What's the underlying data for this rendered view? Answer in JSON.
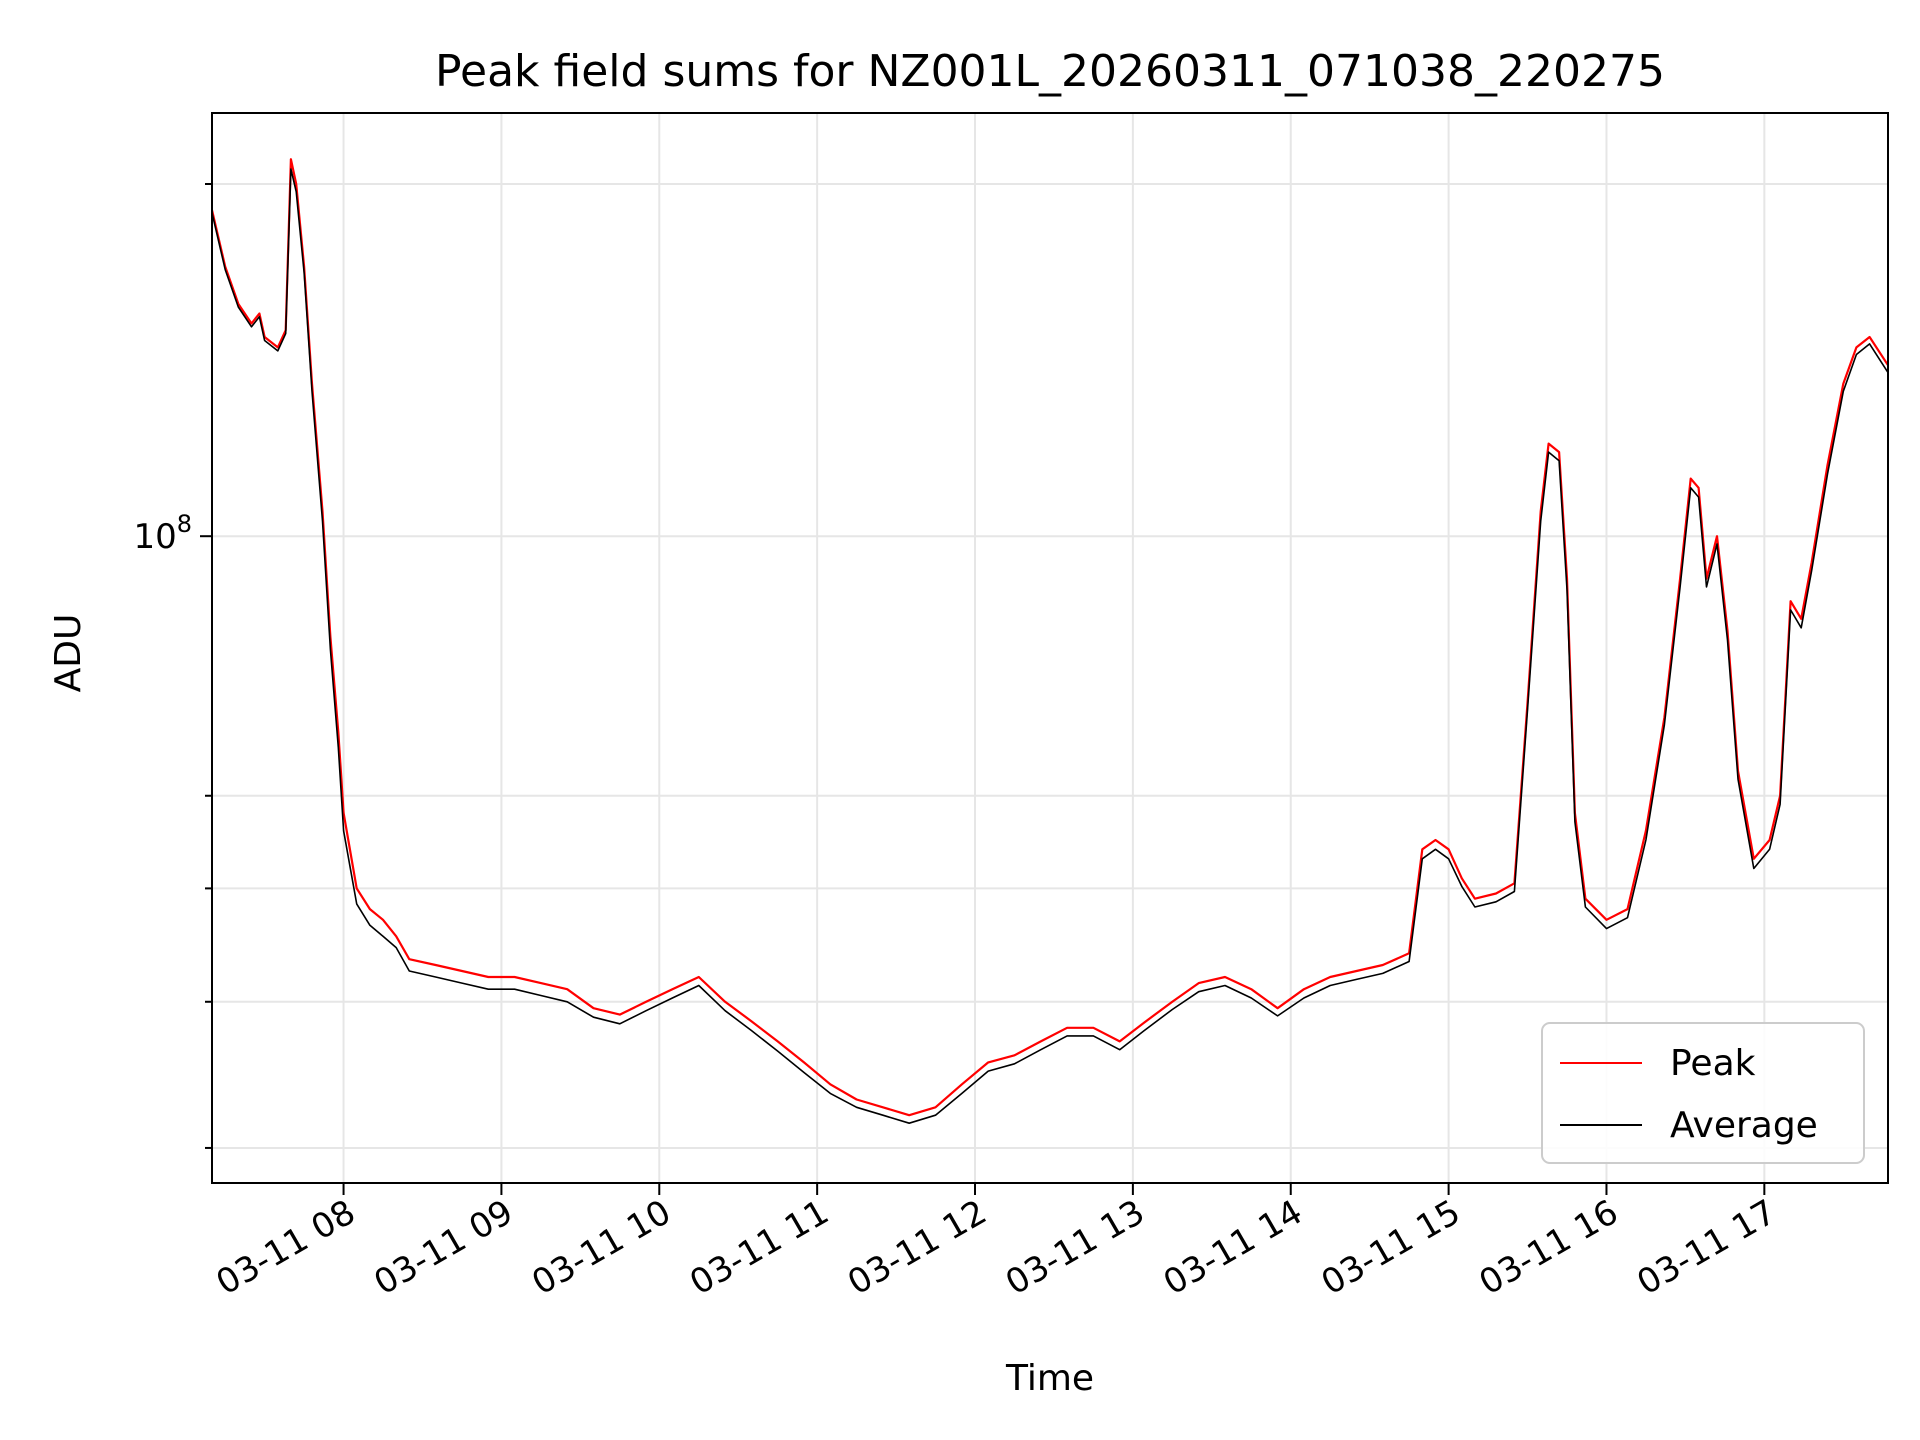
{
  "chart_data": {
    "type": "line",
    "title": "Peak field sums for NZ001L_20260311_071038_220275",
    "xlabel": "Time",
    "ylabel": "ADU",
    "yscale": "log",
    "ylim": [
      28000000,
      230000000
    ],
    "xlim": [
      "2026-03-11 07:10",
      "2026-03-11 17:47"
    ],
    "grid": true,
    "legend_position": "lower-right",
    "x_ticks": [
      {
        "value": "2026-03-11 08:00",
        "label": "03-11 08"
      },
      {
        "value": "2026-03-11 09:00",
        "label": "03-11 09"
      },
      {
        "value": "2026-03-11 10:00",
        "label": "03-11 10"
      },
      {
        "value": "2026-03-11 11:00",
        "label": "03-11 11"
      },
      {
        "value": "2026-03-11 12:00",
        "label": "03-11 12"
      },
      {
        "value": "2026-03-11 13:00",
        "label": "03-11 13"
      },
      {
        "value": "2026-03-11 14:00",
        "label": "03-11 14"
      },
      {
        "value": "2026-03-11 15:00",
        "label": "03-11 15"
      },
      {
        "value": "2026-03-11 16:00",
        "label": "03-11 16"
      },
      {
        "value": "2026-03-11 17:00",
        "label": "03-11 17"
      }
    ],
    "y_major_ticks": [
      {
        "value": 100000000,
        "label": "10",
        "exponent": "8"
      }
    ],
    "y_minor_ticks": [
      30000000,
      40000000,
      50000000,
      60000000,
      200000000
    ],
    "series": [
      {
        "name": "Peak",
        "color": "#ff0000",
        "points": [
          [
            "2026-03-11 07:10",
            190000000
          ],
          [
            "2026-03-11 07:15",
            170000000
          ],
          [
            "2026-03-11 07:20",
            158000000
          ],
          [
            "2026-03-11 07:25",
            152000000
          ],
          [
            "2026-03-11 07:28",
            155000000
          ],
          [
            "2026-03-11 07:30",
            148000000
          ],
          [
            "2026-03-11 07:35",
            145000000
          ],
          [
            "2026-03-11 07:38",
            150000000
          ],
          [
            "2026-03-11 07:40",
            210000000
          ],
          [
            "2026-03-11 07:42",
            200000000
          ],
          [
            "2026-03-11 07:45",
            170000000
          ],
          [
            "2026-03-11 07:48",
            135000000
          ],
          [
            "2026-03-11 07:52",
            105000000
          ],
          [
            "2026-03-11 07:55",
            82000000
          ],
          [
            "2026-03-11 07:58",
            68000000
          ],
          [
            "2026-03-11 08:00",
            58000000
          ],
          [
            "2026-03-11 08:05",
            50000000
          ],
          [
            "2026-03-11 08:10",
            48000000
          ],
          [
            "2026-03-11 08:15",
            47000000
          ],
          [
            "2026-03-11 08:20",
            45500000
          ],
          [
            "2026-03-11 08:25",
            43500000
          ],
          [
            "2026-03-11 08:35",
            43000000
          ],
          [
            "2026-03-11 08:45",
            42500000
          ],
          [
            "2026-03-11 08:55",
            42000000
          ],
          [
            "2026-03-11 09:05",
            42000000
          ],
          [
            "2026-03-11 09:15",
            41500000
          ],
          [
            "2026-03-11 09:25",
            41000000
          ],
          [
            "2026-03-11 09:35",
            39500000
          ],
          [
            "2026-03-11 09:45",
            39000000
          ],
          [
            "2026-03-11 09:55",
            40000000
          ],
          [
            "2026-03-11 10:05",
            41000000
          ],
          [
            "2026-03-11 10:15",
            42000000
          ],
          [
            "2026-03-11 10:25",
            40000000
          ],
          [
            "2026-03-11 10:35",
            38500000
          ],
          [
            "2026-03-11 10:45",
            37000000
          ],
          [
            "2026-03-11 10:55",
            35500000
          ],
          [
            "2026-03-11 11:05",
            34000000
          ],
          [
            "2026-03-11 11:15",
            33000000
          ],
          [
            "2026-03-11 11:25",
            32500000
          ],
          [
            "2026-03-11 11:35",
            32000000
          ],
          [
            "2026-03-11 11:45",
            32500000
          ],
          [
            "2026-03-11 11:55",
            34000000
          ],
          [
            "2026-03-11 12:05",
            35500000
          ],
          [
            "2026-03-11 12:15",
            36000000
          ],
          [
            "2026-03-11 12:25",
            37000000
          ],
          [
            "2026-03-11 12:35",
            38000000
          ],
          [
            "2026-03-11 12:45",
            38000000
          ],
          [
            "2026-03-11 12:55",
            37000000
          ],
          [
            "2026-03-11 13:05",
            38500000
          ],
          [
            "2026-03-11 13:15",
            40000000
          ],
          [
            "2026-03-11 13:25",
            41500000
          ],
          [
            "2026-03-11 13:35",
            42000000
          ],
          [
            "2026-03-11 13:45",
            41000000
          ],
          [
            "2026-03-11 13:55",
            39500000
          ],
          [
            "2026-03-11 14:05",
            41000000
          ],
          [
            "2026-03-11 14:15",
            42000000
          ],
          [
            "2026-03-11 14:25",
            42500000
          ],
          [
            "2026-03-11 14:35",
            43000000
          ],
          [
            "2026-03-11 14:45",
            44000000
          ],
          [
            "2026-03-11 14:50",
            54000000
          ],
          [
            "2026-03-11 14:55",
            55000000
          ],
          [
            "2026-03-11 15:00",
            54000000
          ],
          [
            "2026-03-11 15:05",
            51000000
          ],
          [
            "2026-03-11 15:10",
            49000000
          ],
          [
            "2026-03-11 15:18",
            49500000
          ],
          [
            "2026-03-11 15:25",
            50500000
          ],
          [
            "2026-03-11 15:30",
            72000000
          ],
          [
            "2026-03-11 15:35",
            105000000
          ],
          [
            "2026-03-11 15:38",
            120000000
          ],
          [
            "2026-03-11 15:42",
            118000000
          ],
          [
            "2026-03-11 15:45",
            92000000
          ],
          [
            "2026-03-11 15:48",
            58000000
          ],
          [
            "2026-03-11 15:52",
            49000000
          ],
          [
            "2026-03-11 16:00",
            47000000
          ],
          [
            "2026-03-11 16:08",
            48000000
          ],
          [
            "2026-03-11 16:15",
            56000000
          ],
          [
            "2026-03-11 16:22",
            70000000
          ],
          [
            "2026-03-11 16:28",
            92000000
          ],
          [
            "2026-03-11 16:32",
            112000000
          ],
          [
            "2026-03-11 16:35",
            110000000
          ],
          [
            "2026-03-11 16:38",
            92000000
          ],
          [
            "2026-03-11 16:42",
            100000000
          ],
          [
            "2026-03-11 16:46",
            83000000
          ],
          [
            "2026-03-11 16:50",
            63000000
          ],
          [
            "2026-03-11 16:56",
            53000000
          ],
          [
            "2026-03-11 17:02",
            55000000
          ],
          [
            "2026-03-11 17:06",
            60000000
          ],
          [
            "2026-03-11 17:10",
            88000000
          ],
          [
            "2026-03-11 17:14",
            85000000
          ],
          [
            "2026-03-11 17:18",
            95000000
          ],
          [
            "2026-03-11 17:24",
            115000000
          ],
          [
            "2026-03-11 17:30",
            135000000
          ],
          [
            "2026-03-11 17:35",
            145000000
          ],
          [
            "2026-03-11 17:40",
            148000000
          ],
          [
            "2026-03-11 17:47",
            140000000
          ]
        ]
      },
      {
        "name": "Average",
        "color": "#000000",
        "points": [
          [
            "2026-03-11 07:10",
            189000000
          ],
          [
            "2026-03-11 07:15",
            169000000
          ],
          [
            "2026-03-11 07:20",
            157000000
          ],
          [
            "2026-03-11 07:25",
            151000000
          ],
          [
            "2026-03-11 07:28",
            154000000
          ],
          [
            "2026-03-11 07:30",
            147000000
          ],
          [
            "2026-03-11 07:35",
            144000000
          ],
          [
            "2026-03-11 07:38",
            149000000
          ],
          [
            "2026-03-11 07:40",
            206000000
          ],
          [
            "2026-03-11 07:42",
            197000000
          ],
          [
            "2026-03-11 07:45",
            168000000
          ],
          [
            "2026-03-11 07:48",
            133000000
          ],
          [
            "2026-03-11 07:52",
            103000000
          ],
          [
            "2026-03-11 07:55",
            80000000
          ],
          [
            "2026-03-11 07:58",
            66000000
          ],
          [
            "2026-03-11 08:00",
            56000000
          ],
          [
            "2026-03-11 08:05",
            48500000
          ],
          [
            "2026-03-11 08:10",
            46500000
          ],
          [
            "2026-03-11 08:15",
            45500000
          ],
          [
            "2026-03-11 08:20",
            44500000
          ],
          [
            "2026-03-11 08:25",
            42500000
          ],
          [
            "2026-03-11 08:35",
            42000000
          ],
          [
            "2026-03-11 08:45",
            41500000
          ],
          [
            "2026-03-11 08:55",
            41000000
          ],
          [
            "2026-03-11 09:05",
            41000000
          ],
          [
            "2026-03-11 09:15",
            40500000
          ],
          [
            "2026-03-11 09:25",
            40000000
          ],
          [
            "2026-03-11 09:35",
            38800000
          ],
          [
            "2026-03-11 09:45",
            38300000
          ],
          [
            "2026-03-11 09:55",
            39300000
          ],
          [
            "2026-03-11 10:05",
            40300000
          ],
          [
            "2026-03-11 10:15",
            41300000
          ],
          [
            "2026-03-11 10:25",
            39300000
          ],
          [
            "2026-03-11 10:35",
            37800000
          ],
          [
            "2026-03-11 10:45",
            36300000
          ],
          [
            "2026-03-11 10:55",
            34800000
          ],
          [
            "2026-03-11 11:05",
            33400000
          ],
          [
            "2026-03-11 11:15",
            32500000
          ],
          [
            "2026-03-11 11:25",
            32000000
          ],
          [
            "2026-03-11 11:35",
            31500000
          ],
          [
            "2026-03-11 11:45",
            32000000
          ],
          [
            "2026-03-11 11:55",
            33400000
          ],
          [
            "2026-03-11 12:05",
            34900000
          ],
          [
            "2026-03-11 12:15",
            35400000
          ],
          [
            "2026-03-11 12:25",
            36400000
          ],
          [
            "2026-03-11 12:35",
            37400000
          ],
          [
            "2026-03-11 12:45",
            37400000
          ],
          [
            "2026-03-11 12:55",
            36400000
          ],
          [
            "2026-03-11 13:05",
            37900000
          ],
          [
            "2026-03-11 13:15",
            39400000
          ],
          [
            "2026-03-11 13:25",
            40800000
          ],
          [
            "2026-03-11 13:35",
            41300000
          ],
          [
            "2026-03-11 13:45",
            40300000
          ],
          [
            "2026-03-11 13:55",
            38900000
          ],
          [
            "2026-03-11 14:05",
            40300000
          ],
          [
            "2026-03-11 14:15",
            41300000
          ],
          [
            "2026-03-11 14:25",
            41800000
          ],
          [
            "2026-03-11 14:35",
            42300000
          ],
          [
            "2026-03-11 14:45",
            43300000
          ],
          [
            "2026-03-11 14:50",
            53000000
          ],
          [
            "2026-03-11 14:55",
            54000000
          ],
          [
            "2026-03-11 15:00",
            53000000
          ],
          [
            "2026-03-11 15:05",
            50200000
          ],
          [
            "2026-03-11 15:10",
            48200000
          ],
          [
            "2026-03-11 15:18",
            48700000
          ],
          [
            "2026-03-11 15:25",
            49700000
          ],
          [
            "2026-03-11 15:30",
            71000000
          ],
          [
            "2026-03-11 15:35",
            103000000
          ],
          [
            "2026-03-11 15:38",
            118000000
          ],
          [
            "2026-03-11 15:42",
            116000000
          ],
          [
            "2026-03-11 15:45",
            90000000
          ],
          [
            "2026-03-11 15:48",
            57000000
          ],
          [
            "2026-03-11 15:52",
            48200000
          ],
          [
            "2026-03-11 16:00",
            46200000
          ],
          [
            "2026-03-11 16:08",
            47200000
          ],
          [
            "2026-03-11 16:15",
            55000000
          ],
          [
            "2026-03-11 16:22",
            69000000
          ],
          [
            "2026-03-11 16:28",
            90500000
          ],
          [
            "2026-03-11 16:32",
            110000000
          ],
          [
            "2026-03-11 16:35",
            108000000
          ],
          [
            "2026-03-11 16:38",
            90500000
          ],
          [
            "2026-03-11 16:42",
            98500000
          ],
          [
            "2026-03-11 16:46",
            81500000
          ],
          [
            "2026-03-11 16:50",
            62000000
          ],
          [
            "2026-03-11 16:56",
            52000000
          ],
          [
            "2026-03-11 17:02",
            54000000
          ],
          [
            "2026-03-11 17:06",
            59000000
          ],
          [
            "2026-03-11 17:10",
            86500000
          ],
          [
            "2026-03-11 17:14",
            83500000
          ],
          [
            "2026-03-11 17:18",
            93500000
          ],
          [
            "2026-03-11 17:24",
            113000000
          ],
          [
            "2026-03-11 17:30",
            133000000
          ],
          [
            "2026-03-11 17:35",
            143000000
          ],
          [
            "2026-03-11 17:40",
            146000000
          ],
          [
            "2026-03-11 17:47",
            138000000
          ]
        ]
      }
    ]
  }
}
